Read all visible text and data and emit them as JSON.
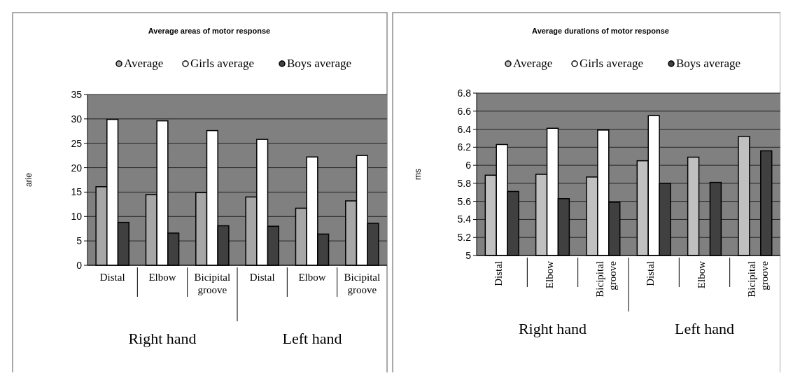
{
  "chart_data": [
    {
      "type": "bar",
      "title": "Average areas of motor response",
      "ylabel": "arie",
      "categories": [
        "Distal",
        "Elbow",
        "Bicipital groove",
        "Distal",
        "Elbow",
        "Bicipital groove"
      ],
      "series": [
        {
          "name": "Average",
          "color": "#a6a6a6",
          "values": [
            16.1,
            14.5,
            14.9,
            14.0,
            11.7,
            13.2
          ]
        },
        {
          "name": "Girls average",
          "color": "#ffffff",
          "values": [
            29.9,
            29.6,
            27.6,
            25.8,
            22.2,
            22.5
          ]
        },
        {
          "name": "Boys average",
          "color": "#404040",
          "values": [
            8.8,
            6.6,
            8.1,
            8.0,
            6.4,
            8.6
          ]
        }
      ],
      "ylim": [
        0,
        35
      ],
      "yticks": [
        0,
        5,
        10,
        15,
        20,
        25,
        30,
        35
      ],
      "grid": "y",
      "legend": "top",
      "annotations": [
        "Right hand",
        "Left hand"
      ]
    },
    {
      "type": "bar",
      "title": "Average durations of motor response",
      "ylabel": "ms",
      "categories": [
        "Distal",
        "Elbow",
        "Bicipital groove",
        "Distal",
        "Elbow",
        "Bicipital groove"
      ],
      "series": [
        {
          "name": "Average",
          "color": "#c0c0c0",
          "values": [
            5.89,
            5.9,
            5.87,
            6.05,
            6.09,
            6.32
          ]
        },
        {
          "name": "Girls average",
          "color": "#ffffff",
          "values": [
            6.23,
            6.41,
            6.39,
            6.55,
            null,
            null
          ]
        },
        {
          "name": "Boys average",
          "color": "#404040",
          "values": [
            5.71,
            5.63,
            5.59,
            5.8,
            5.81,
            6.16
          ]
        }
      ],
      "ylim": [
        5,
        6.8
      ],
      "yticks": [
        5,
        5.2,
        5.4,
        5.6,
        5.8,
        6,
        6.2,
        6.4,
        6.6,
        6.8
      ],
      "grid": "y",
      "legend": "top",
      "annotations": [
        "Right hand",
        "Left hand"
      ]
    }
  ]
}
